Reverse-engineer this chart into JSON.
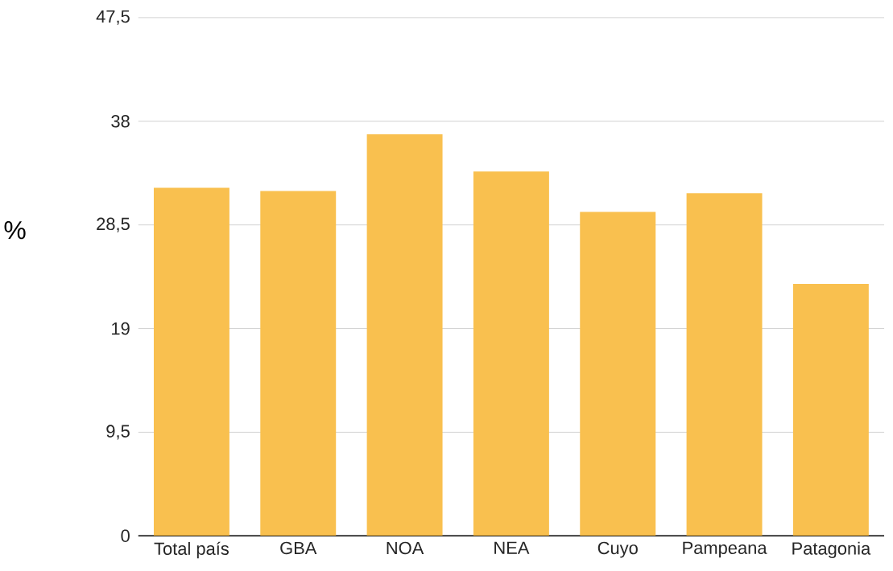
{
  "chart_data": {
    "type": "bar",
    "ylabel": "%",
    "categories": [
      "Total país",
      "GBA",
      "NOA",
      "NEA",
      "Cuyo",
      "Pampeana",
      "Patagonia"
    ],
    "values": [
      31.9,
      31.6,
      36.8,
      33.4,
      29.7,
      31.4,
      23.1
    ],
    "color": "#f9c04f",
    "ylim": [
      0,
      47.5
    ],
    "yticks": [
      0,
      {
        "value": 9.5,
        "label": "9,5"
      },
      19,
      {
        "value": 28.5,
        "label": "28,5"
      },
      38,
      {
        "value": 47.5,
        "label": "47,5"
      }
    ],
    "grid": "y"
  }
}
